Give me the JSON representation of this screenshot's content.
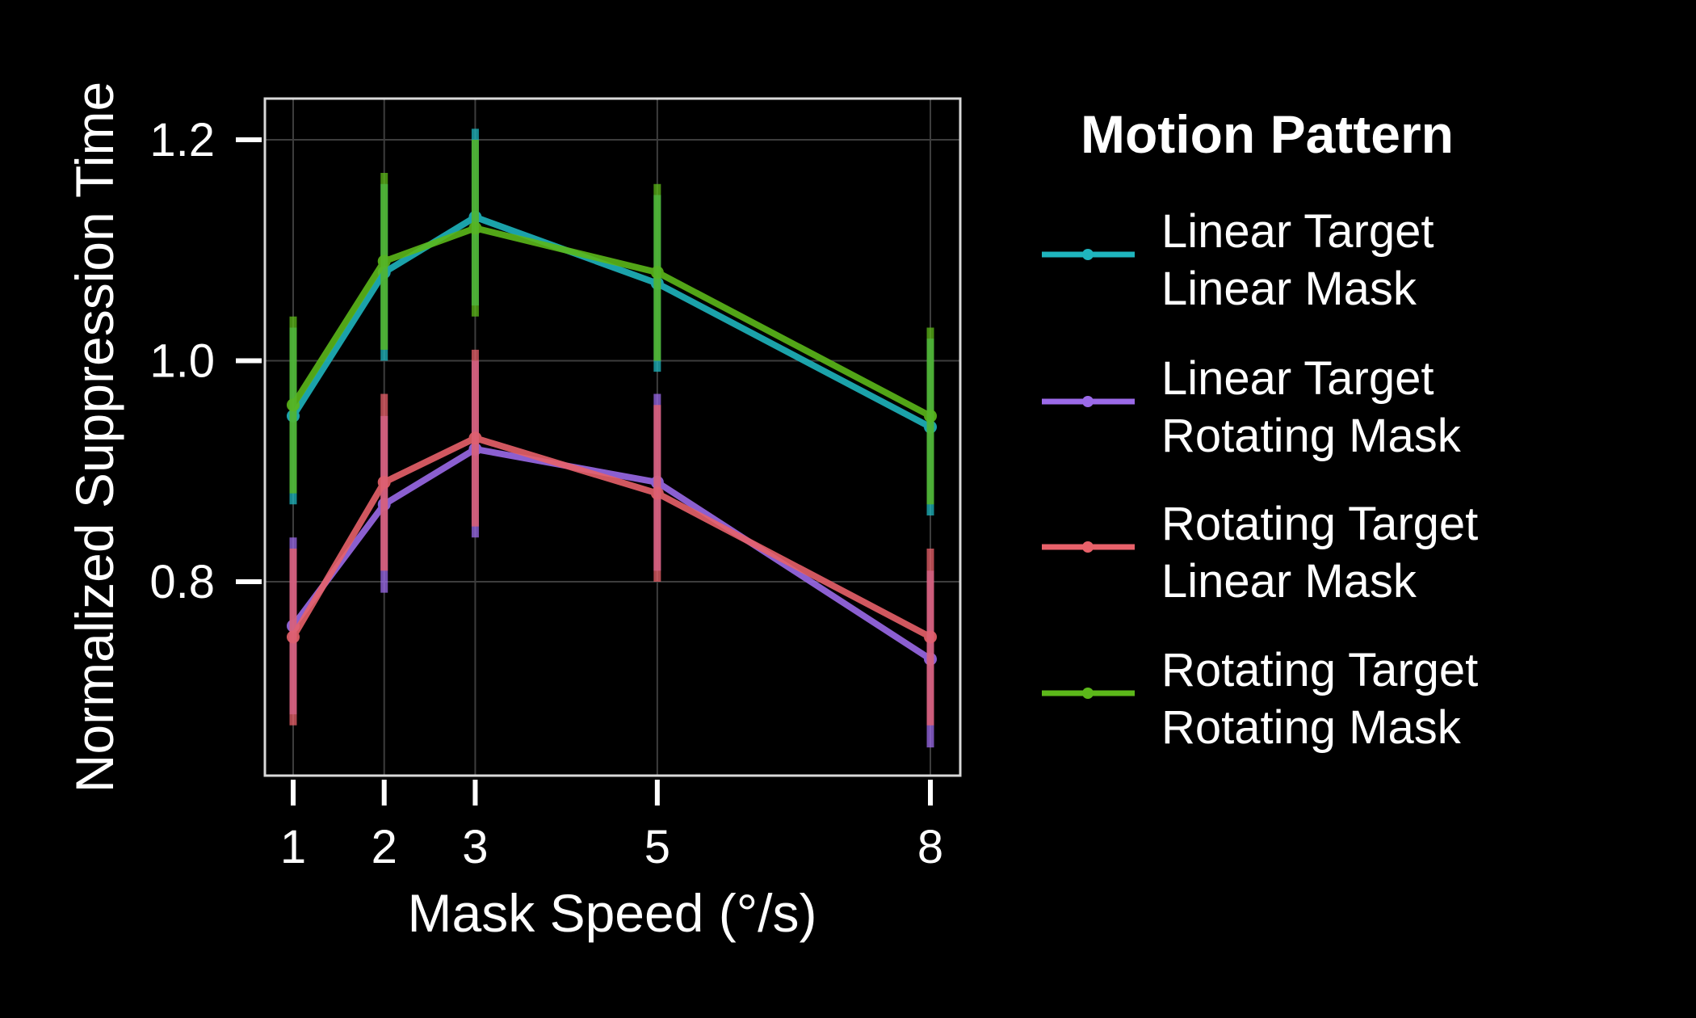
{
  "chart_data": {
    "type": "line",
    "xlabel": "Mask Speed (°/s)",
    "ylabel": "Normalized Suppression Time",
    "x": [
      1,
      2,
      3,
      5,
      8
    ],
    "x_ticks": [
      "1",
      "2",
      "3",
      "5",
      "8"
    ],
    "y_ticks": [
      "0.8",
      "1.0",
      "1.2"
    ],
    "y_tick_values": [
      0.8,
      1.0,
      1.2
    ],
    "xlim": [
      0.8,
      8.35
    ],
    "ylim": [
      0.625,
      1.235
    ],
    "grid": true,
    "legend": {
      "title": "Motion Pattern",
      "placement": "right"
    },
    "series": [
      {
        "name": "Linear Target\nLinear Mask",
        "name_lines": [
          "Linear Target",
          "Linear Mask"
        ],
        "color": "#1fb5be",
        "values": [
          0.95,
          1.08,
          1.13,
          1.07,
          0.94
        ],
        "err_low": [
          0.87,
          1.0,
          1.05,
          0.99,
          0.86
        ],
        "err_high": [
          1.03,
          1.16,
          1.21,
          1.15,
          1.02
        ]
      },
      {
        "name": "Linear Target\nRotating Mask",
        "name_lines": [
          "Linear Target",
          "Rotating Mask"
        ],
        "color": "#9b6ae8",
        "values": [
          0.76,
          0.87,
          0.92,
          0.89,
          0.73
        ],
        "err_low": [
          0.68,
          0.79,
          0.84,
          0.81,
          0.65
        ],
        "err_high": [
          0.84,
          0.95,
          1.0,
          0.97,
          0.81
        ]
      },
      {
        "name": "Rotating Target\nLinear Mask",
        "name_lines": [
          "Rotating Target",
          "Linear Mask"
        ],
        "color": "#e8616a",
        "values": [
          0.75,
          0.89,
          0.93,
          0.88,
          0.75
        ],
        "err_low": [
          0.67,
          0.81,
          0.85,
          0.8,
          0.67
        ],
        "err_high": [
          0.83,
          0.97,
          1.01,
          0.96,
          0.83
        ]
      },
      {
        "name": "Rotating Target\nRotating Mask",
        "name_lines": [
          "Rotating Target",
          "Rotating Mask"
        ],
        "color": "#5cb81a",
        "values": [
          0.96,
          1.09,
          1.12,
          1.08,
          0.95
        ],
        "err_low": [
          0.88,
          1.01,
          1.04,
          1.0,
          0.87
        ],
        "err_high": [
          1.04,
          1.17,
          1.2,
          1.16,
          1.03
        ]
      }
    ]
  }
}
